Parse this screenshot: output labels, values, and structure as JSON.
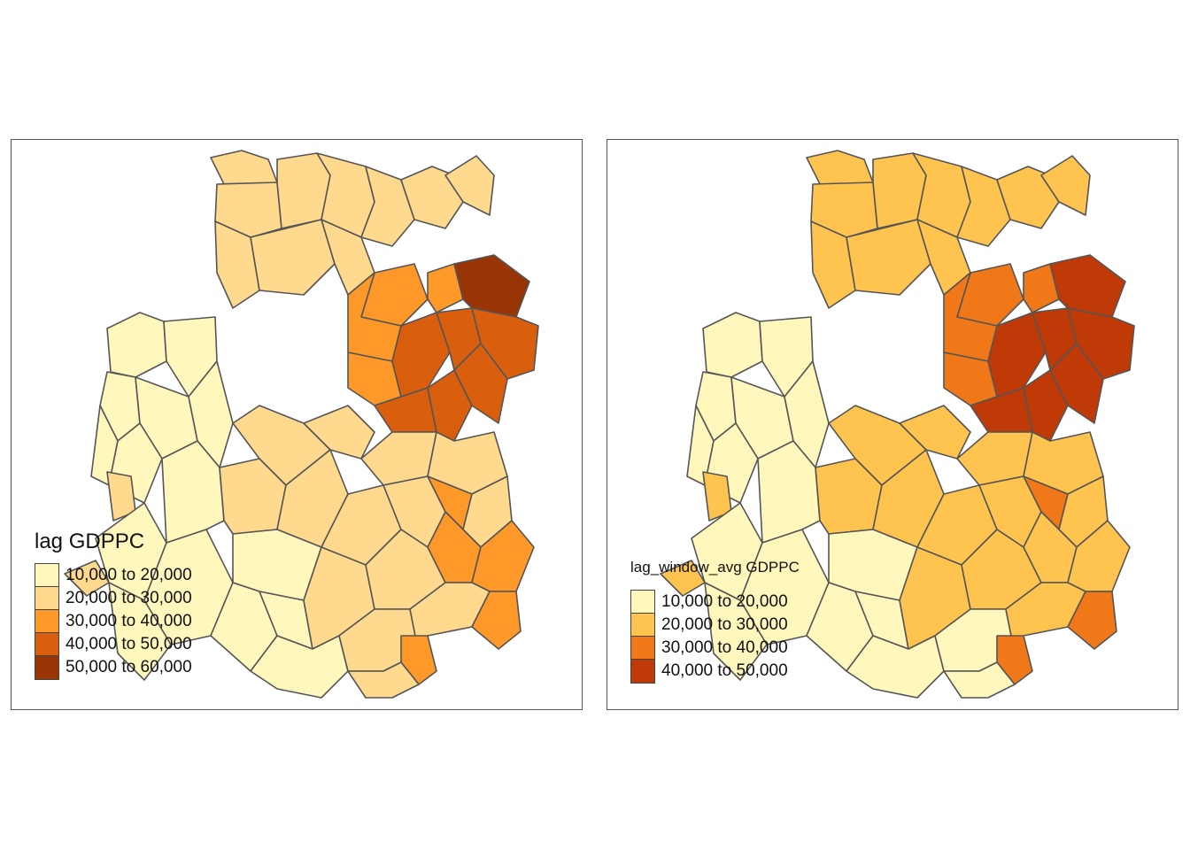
{
  "panels": [
    {
      "legend_title": "lag GDPPC",
      "classes": [
        {
          "label": "10,000 to 20,000",
          "color": "#FFF7BC"
        },
        {
          "label": "20,000 to 30,000",
          "color": "#FED98E"
        },
        {
          "label": "30,000 to 40,000",
          "color": "#FE9929"
        },
        {
          "label": "40,000 to 50,000",
          "color": "#D95F0E"
        },
        {
          "label": "50,000 to 60,000",
          "color": "#993404"
        }
      ]
    },
    {
      "legend_title": "lag_window_avg GDPPC",
      "classes": [
        {
          "label": "10,000 to 20,000",
          "color": "#FFF7BC"
        },
        {
          "label": "20,000 to 30,000",
          "color": "#FEC44F"
        },
        {
          "label": "30,000 to 40,000",
          "color": "#F07818"
        },
        {
          "label": "40,000 to 50,000",
          "color": "#BF3A06"
        }
      ]
    }
  ],
  "border_color": "#555555"
}
